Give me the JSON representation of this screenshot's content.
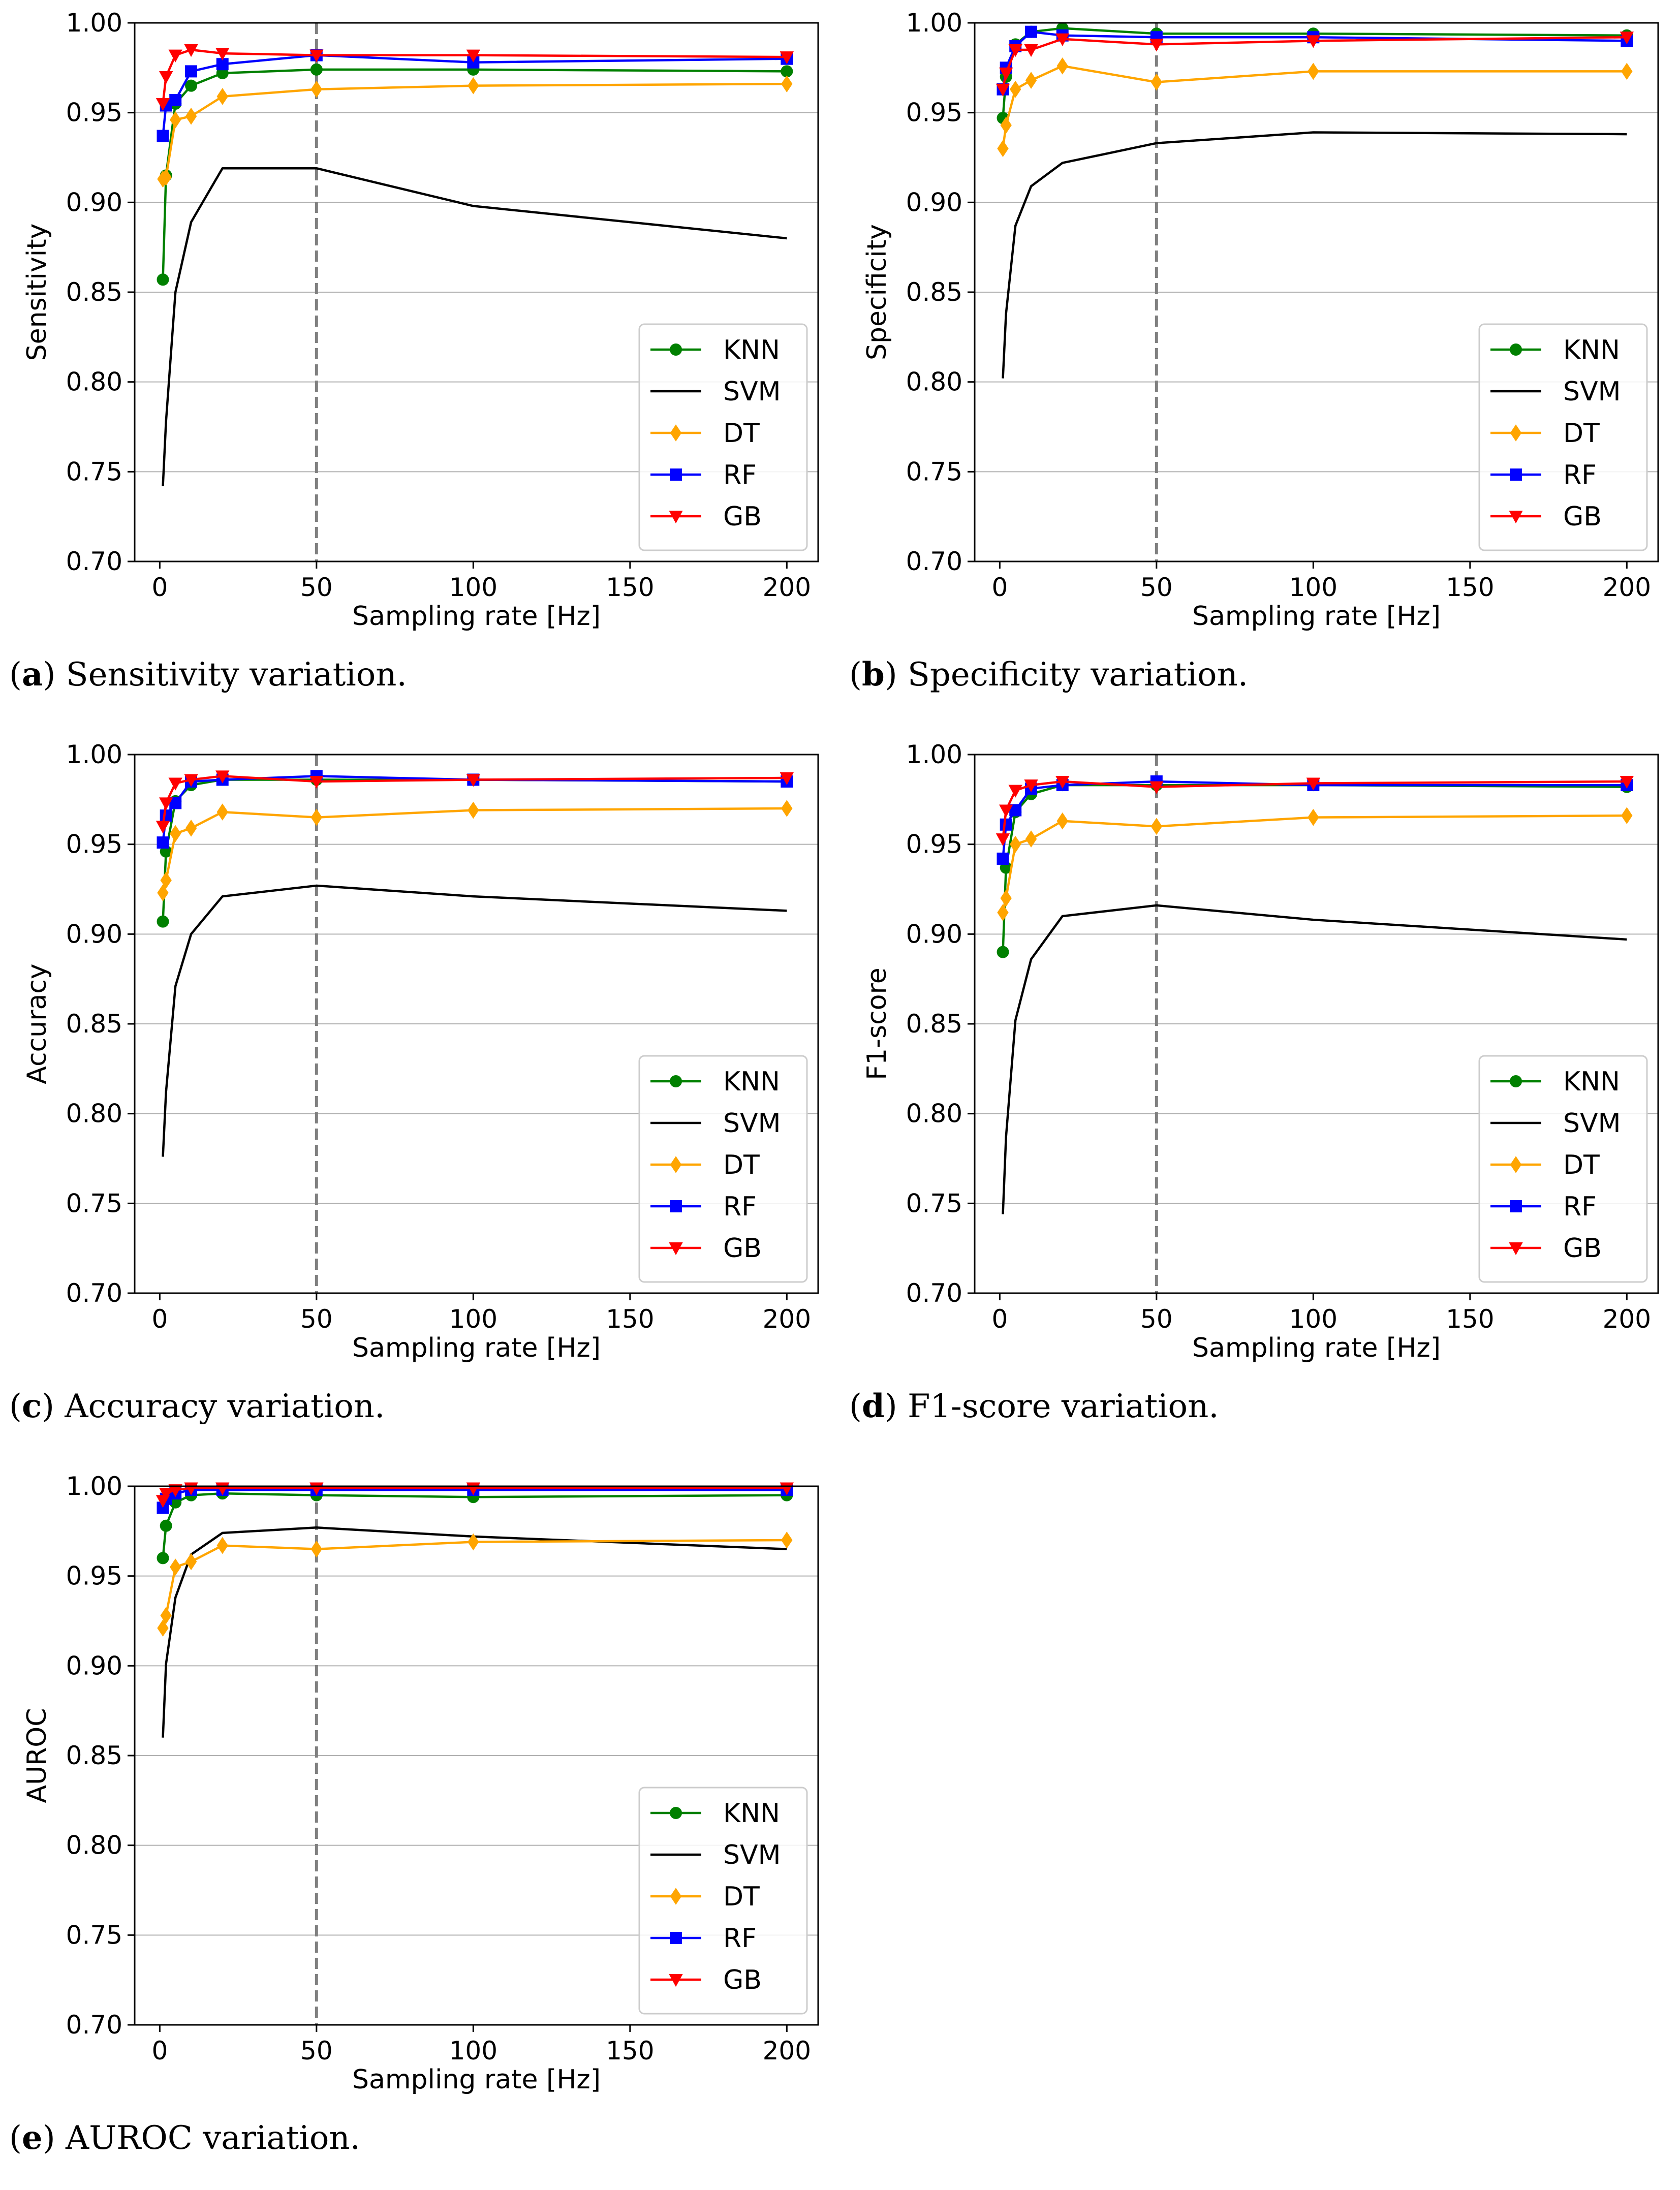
{
  "chart_data": [
    {
      "type": "line",
      "id": "a",
      "caption_letter": "a",
      "caption_text": " Sensitivity variation.",
      "xlabel": "Sampling rate [Hz]",
      "ylabel": "Sensitivity",
      "xlim": [
        -8,
        210
      ],
      "ylim": [
        0.7,
        1.0
      ],
      "xticks": [
        0,
        50,
        100,
        150,
        200
      ],
      "yticks": [
        0.7,
        0.75,
        0.8,
        0.85,
        0.9,
        0.95,
        1.0
      ],
      "xtick_labels": [
        "0",
        "50",
        "100",
        "150",
        "200"
      ],
      "ytick_labels": [
        "0.70",
        "0.75",
        "0.80",
        "0.85",
        "0.90",
        "0.95",
        "1.00"
      ],
      "grid": "horizontal",
      "vline": 50,
      "legend_position": "lower-right",
      "x": [
        1,
        2,
        5,
        10,
        20,
        50,
        100,
        200
      ],
      "series": [
        {
          "name": "KNN",
          "color": "#008000",
          "marker": "circle",
          "values": [
            0.857,
            0.915,
            0.955,
            0.965,
            0.972,
            0.974,
            0.974,
            0.973
          ]
        },
        {
          "name": "SVM",
          "color": "#000000",
          "marker": "none",
          "values": [
            0.742,
            0.778,
            0.85,
            0.889,
            0.919,
            0.919,
            0.898,
            0.88
          ]
        },
        {
          "name": "DT",
          "color": "#FFA500",
          "marker": "diamond",
          "values": [
            0.913,
            0.914,
            0.946,
            0.948,
            0.959,
            0.963,
            0.965,
            0.966
          ]
        },
        {
          "name": "RF",
          "color": "#0000FF",
          "marker": "square",
          "values": [
            0.937,
            0.954,
            0.957,
            0.973,
            0.977,
            0.982,
            0.978,
            0.98
          ]
        },
        {
          "name": "GB",
          "color": "#FF0000",
          "marker": "triangle-down",
          "values": [
            0.955,
            0.97,
            0.982,
            0.985,
            0.983,
            0.982,
            0.982,
            0.981
          ]
        }
      ]
    },
    {
      "type": "line",
      "id": "b",
      "caption_letter": "b",
      "caption_text": " Specificity variation.",
      "xlabel": "Sampling rate [Hz]",
      "ylabel": "Specificity",
      "xlim": [
        -8,
        210
      ],
      "ylim": [
        0.7,
        1.0
      ],
      "xticks": [
        0,
        50,
        100,
        150,
        200
      ],
      "yticks": [
        0.7,
        0.75,
        0.8,
        0.85,
        0.9,
        0.95,
        1.0
      ],
      "xtick_labels": [
        "0",
        "50",
        "100",
        "150",
        "200"
      ],
      "ytick_labels": [
        "0.70",
        "0.75",
        "0.80",
        "0.85",
        "0.90",
        "0.95",
        "1.00"
      ],
      "grid": "horizontal",
      "vline": 50,
      "legend_position": "lower-right",
      "x": [
        1,
        2,
        5,
        10,
        20,
        50,
        100,
        200
      ],
      "series": [
        {
          "name": "KNN",
          "color": "#008000",
          "marker": "circle",
          "values": [
            0.947,
            0.97,
            0.988,
            0.995,
            0.997,
            0.994,
            0.994,
            0.993
          ]
        },
        {
          "name": "SVM",
          "color": "#000000",
          "marker": "none",
          "values": [
            0.802,
            0.838,
            0.887,
            0.909,
            0.922,
            0.933,
            0.939,
            0.938
          ]
        },
        {
          "name": "DT",
          "color": "#FFA500",
          "marker": "diamond",
          "values": [
            0.93,
            0.943,
            0.963,
            0.968,
            0.976,
            0.967,
            0.973,
            0.973
          ]
        },
        {
          "name": "RF",
          "color": "#0000FF",
          "marker": "square",
          "values": [
            0.963,
            0.975,
            0.987,
            0.995,
            0.993,
            0.992,
            0.992,
            0.99
          ]
        },
        {
          "name": "GB",
          "color": "#FF0000",
          "marker": "triangle-down",
          "values": [
            0.963,
            0.972,
            0.985,
            0.985,
            0.991,
            0.988,
            0.99,
            0.992
          ]
        }
      ]
    },
    {
      "type": "line",
      "id": "c",
      "caption_letter": "c",
      "caption_text": " Accuracy variation.",
      "xlabel": "Sampling rate [Hz]",
      "ylabel": "Accuracy",
      "xlim": [
        -8,
        210
      ],
      "ylim": [
        0.7,
        1.0
      ],
      "xticks": [
        0,
        50,
        100,
        150,
        200
      ],
      "yticks": [
        0.7,
        0.75,
        0.8,
        0.85,
        0.9,
        0.95,
        1.0
      ],
      "xtick_labels": [
        "0",
        "50",
        "100",
        "150",
        "200"
      ],
      "ytick_labels": [
        "0.70",
        "0.75",
        "0.80",
        "0.85",
        "0.90",
        "0.95",
        "1.00"
      ],
      "grid": "horizontal",
      "vline": 50,
      "legend_position": "lower-right",
      "x": [
        1,
        2,
        5,
        10,
        20,
        50,
        100,
        200
      ],
      "series": [
        {
          "name": "KNN",
          "color": "#008000",
          "marker": "circle",
          "values": [
            0.907,
            0.946,
            0.974,
            0.983,
            0.986,
            0.986,
            0.986,
            0.985
          ]
        },
        {
          "name": "SVM",
          "color": "#000000",
          "marker": "none",
          "values": [
            0.776,
            0.812,
            0.871,
            0.9,
            0.921,
            0.927,
            0.921,
            0.913
          ]
        },
        {
          "name": "DT",
          "color": "#FFA500",
          "marker": "diamond",
          "values": [
            0.923,
            0.93,
            0.956,
            0.959,
            0.968,
            0.965,
            0.969,
            0.97
          ]
        },
        {
          "name": "RF",
          "color": "#0000FF",
          "marker": "square",
          "values": [
            0.951,
            0.966,
            0.973,
            0.985,
            0.986,
            0.988,
            0.986,
            0.985
          ]
        },
        {
          "name": "GB",
          "color": "#FF0000",
          "marker": "triangle-down",
          "values": [
            0.96,
            0.973,
            0.984,
            0.986,
            0.988,
            0.985,
            0.986,
            0.987
          ]
        }
      ]
    },
    {
      "type": "line",
      "id": "d",
      "caption_letter": "d",
      "caption_text": " F1-score variation.",
      "xlabel": "Sampling rate [Hz]",
      "ylabel": "F1-score",
      "xlim": [
        -8,
        210
      ],
      "ylim": [
        0.7,
        1.0
      ],
      "xticks": [
        0,
        50,
        100,
        150,
        200
      ],
      "yticks": [
        0.7,
        0.75,
        0.8,
        0.85,
        0.9,
        0.95,
        1.0
      ],
      "xtick_labels": [
        "0",
        "50",
        "100",
        "150",
        "200"
      ],
      "ytick_labels": [
        "0.70",
        "0.75",
        "0.80",
        "0.85",
        "0.90",
        "0.95",
        "1.00"
      ],
      "grid": "horizontal",
      "vline": 50,
      "legend_position": "lower-right",
      "x": [
        1,
        2,
        5,
        10,
        20,
        50,
        100,
        200
      ],
      "series": [
        {
          "name": "KNN",
          "color": "#008000",
          "marker": "circle",
          "values": [
            0.89,
            0.937,
            0.968,
            0.978,
            0.983,
            0.983,
            0.983,
            0.982
          ]
        },
        {
          "name": "SVM",
          "color": "#000000",
          "marker": "none",
          "values": [
            0.744,
            0.787,
            0.852,
            0.886,
            0.91,
            0.916,
            0.908,
            0.897
          ]
        },
        {
          "name": "DT",
          "color": "#FFA500",
          "marker": "diamond",
          "values": [
            0.912,
            0.92,
            0.95,
            0.953,
            0.963,
            0.96,
            0.965,
            0.966
          ]
        },
        {
          "name": "RF",
          "color": "#0000FF",
          "marker": "square",
          "values": [
            0.942,
            0.961,
            0.969,
            0.981,
            0.983,
            0.985,
            0.983,
            0.983
          ]
        },
        {
          "name": "GB",
          "color": "#FF0000",
          "marker": "triangle-down",
          "values": [
            0.953,
            0.969,
            0.98,
            0.983,
            0.985,
            0.982,
            0.984,
            0.985
          ]
        }
      ]
    },
    {
      "type": "line",
      "id": "e",
      "caption_letter": "e",
      "caption_text": " AUROC variation.",
      "xlabel": "Sampling rate [Hz]",
      "ylabel": "AUROC",
      "xlim": [
        -8,
        210
      ],
      "ylim": [
        0.7,
        1.0
      ],
      "xticks": [
        0,
        50,
        100,
        150,
        200
      ],
      "yticks": [
        0.7,
        0.75,
        0.8,
        0.85,
        0.9,
        0.95,
        1.0
      ],
      "xtick_labels": [
        "0",
        "50",
        "100",
        "150",
        "200"
      ],
      "ytick_labels": [
        "0.70",
        "0.75",
        "0.80",
        "0.85",
        "0.90",
        "0.95",
        "1.00"
      ],
      "grid": "horizontal",
      "vline": 50,
      "legend_position": "lower-right",
      "x": [
        1,
        2,
        5,
        10,
        20,
        50,
        100,
        200
      ],
      "series": [
        {
          "name": "KNN",
          "color": "#008000",
          "marker": "circle",
          "values": [
            0.96,
            0.978,
            0.991,
            0.995,
            0.996,
            0.995,
            0.994,
            0.995
          ]
        },
        {
          "name": "SVM",
          "color": "#000000",
          "marker": "none",
          "values": [
            0.86,
            0.901,
            0.938,
            0.962,
            0.974,
            0.977,
            0.972,
            0.965
          ]
        },
        {
          "name": "DT",
          "color": "#FFA500",
          "marker": "diamond",
          "values": [
            0.921,
            0.928,
            0.955,
            0.958,
            0.967,
            0.965,
            0.969,
            0.97
          ]
        },
        {
          "name": "RF",
          "color": "#0000FF",
          "marker": "square",
          "values": [
            0.988,
            0.993,
            0.996,
            0.998,
            0.998,
            0.998,
            0.998,
            0.998
          ]
        },
        {
          "name": "GB",
          "color": "#FF0000",
          "marker": "triangle-down",
          "values": [
            0.992,
            0.996,
            0.998,
            0.999,
            0.999,
            0.999,
            0.999,
            0.999
          ]
        }
      ]
    }
  ]
}
